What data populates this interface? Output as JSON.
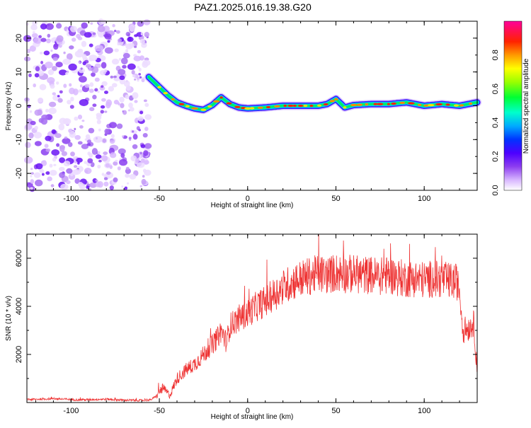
{
  "title": "PAZ1.2025.016.19.38.G20",
  "colors": {
    "snr_line": "#ee3333",
    "frame": "#000000",
    "colormap": [
      "#ffffff",
      "#e6ccff",
      "#c99cf5",
      "#8d3ef0",
      "#4d00ff",
      "#0033ff",
      "#00ccff",
      "#00ff66",
      "#99ff00",
      "#ffff00",
      "#ff9900",
      "#ff0000",
      "#ff1177",
      "#ff00aa"
    ]
  },
  "chart_data": [
    {
      "type": "heatmap",
      "xlabel": "Height of straight line (km)",
      "ylabel": "Frequency (Hz)",
      "xlim": [
        -125,
        130
      ],
      "ylim": [
        -25,
        25
      ],
      "xticks": [
        "-100",
        "-50",
        "0",
        "50",
        "100"
      ],
      "xtick_values": [
        -100,
        -50,
        0,
        50,
        100
      ],
      "yticks": [
        "20",
        "10",
        "0",
        "-10",
        "-20"
      ],
      "ytick_values": [
        20,
        10,
        0,
        -10,
        -20
      ],
      "noise_region_x": [
        -125,
        -56
      ],
      "ridge": {
        "x": [
          -56,
          -50,
          -45,
          -40,
          -35,
          -30,
          -25,
          -20,
          -15,
          -10,
          -5,
          0,
          10,
          20,
          30,
          40,
          45,
          50,
          55,
          60,
          70,
          80,
          90,
          100,
          110,
          120,
          130
        ],
        "frequency_hz": [
          8.5,
          5.5,
          3,
          1,
          0,
          -0.8,
          -1.2,
          0.2,
          2.5,
          0.5,
          -0.5,
          -0.8,
          -0.5,
          0,
          0,
          0,
          0.5,
          2,
          -0.5,
          0.2,
          0.5,
          0.5,
          1,
          0,
          0.5,
          0,
          1
        ]
      },
      "colorbar": {
        "label": "Normalized spectral amplitude",
        "range": [
          0,
          1
        ],
        "ticks": [
          "0.0",
          "0.2",
          "0.4",
          "0.6",
          "0.8"
        ],
        "tick_values": [
          0,
          0.2,
          0.4,
          0.6,
          0.8
        ]
      }
    },
    {
      "type": "line",
      "xlabel": "Height of straight line (km)",
      "ylabel": "SNR (10 * v/v)",
      "xlim": [
        -125,
        130
      ],
      "ylim": [
        0,
        7000
      ],
      "xticks": [
        "-100",
        "-50",
        "0",
        "50",
        "100"
      ],
      "xtick_values": [
        -100,
        -50,
        0,
        50,
        100
      ],
      "yticks": [
        "6000",
        "4000",
        "2000"
      ],
      "ytick_values": [
        6000,
        4000,
        2000
      ],
      "series": [
        {
          "x": [
            -125,
            -110,
            -95,
            -80,
            -70,
            -60,
            -55,
            -52,
            -50,
            -48,
            -46,
            -44,
            -42,
            -40,
            -35,
            -30,
            -25,
            -20,
            -17,
            -15,
            -12,
            -10,
            -5,
            0,
            5,
            10,
            15,
            20,
            25,
            30,
            35,
            40,
            45,
            50,
            55,
            60,
            65,
            70,
            75,
            80,
            85,
            90,
            95,
            100,
            105,
            110,
            115,
            119,
            120,
            122,
            125,
            128,
            130
          ],
          "y": [
            120,
            160,
            110,
            140,
            100,
            90,
            110,
            250,
            450,
            600,
            450,
            300,
            650,
            1000,
            1350,
            1600,
            2000,
            2400,
            2700,
            3000,
            2500,
            3200,
            3500,
            3700,
            4000,
            4200,
            4500,
            4800,
            5000,
            5150,
            5250,
            5350,
            5300,
            5400,
            5350,
            5350,
            5300,
            5300,
            5250,
            5300,
            5200,
            5150,
            5150,
            5100,
            5150,
            5100,
            5050,
            5000,
            4600,
            3000,
            3100,
            3300,
            1500
          ]
        }
      ]
    }
  ]
}
